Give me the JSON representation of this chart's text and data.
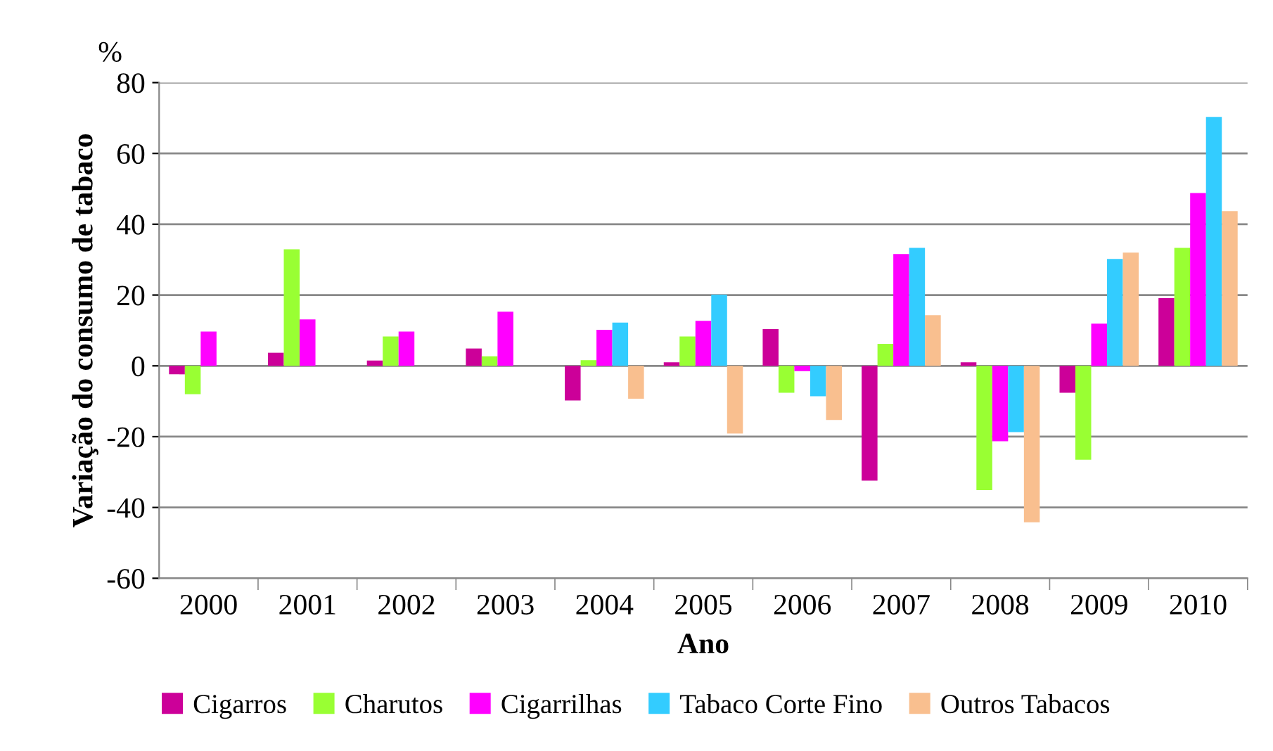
{
  "chart_data": {
    "type": "bar",
    "xlabel": "Ano",
    "ylabel": "Variação do consumo de tabaco",
    "annotations": [
      "%"
    ],
    "categories": [
      "2000",
      "2001",
      "2002",
      "2003",
      "2004",
      "2005",
      "2006",
      "2007",
      "2008",
      "2009",
      "2010"
    ],
    "series": [
      {
        "name": "Cigarros",
        "color": "#cc0099",
        "values": [
          -2.4,
          3.7,
          1.5,
          4.9,
          -9.8,
          1.0,
          10.4,
          -32.4,
          1.0,
          -7.6,
          19.1
        ]
      },
      {
        "name": "Charutos",
        "color": "#99ff33",
        "values": [
          -8.0,
          32.9,
          8.3,
          2.7,
          1.6,
          8.3,
          -7.6,
          6.2,
          -35.1,
          -26.5,
          33.3
        ]
      },
      {
        "name": "Cigarrilhas",
        "color": "#ff00ff",
        "values": [
          9.7,
          13.1,
          9.7,
          15.3,
          10.2,
          12.7,
          -1.5,
          31.6,
          -21.3,
          11.9,
          48.8
        ]
      },
      {
        "name": "Tabaco Corte Fino",
        "color": "#33ccff",
        "values": [
          null,
          null,
          null,
          null,
          12.2,
          20.1,
          -8.6,
          33.3,
          -18.7,
          30.2,
          70.3
        ]
      },
      {
        "name": "Outros Tabacos",
        "color": "#f9bf8f",
        "values": [
          null,
          null,
          null,
          null,
          -9.3,
          -19.1,
          -15.3,
          14.3,
          -44.2,
          32.0,
          43.7
        ]
      }
    ],
    "ylim": [
      -60,
      80
    ],
    "yticks": [
      -60,
      -40,
      -20,
      0,
      20,
      40,
      60,
      80
    ],
    "grid": "y",
    "legend": "bottom"
  }
}
